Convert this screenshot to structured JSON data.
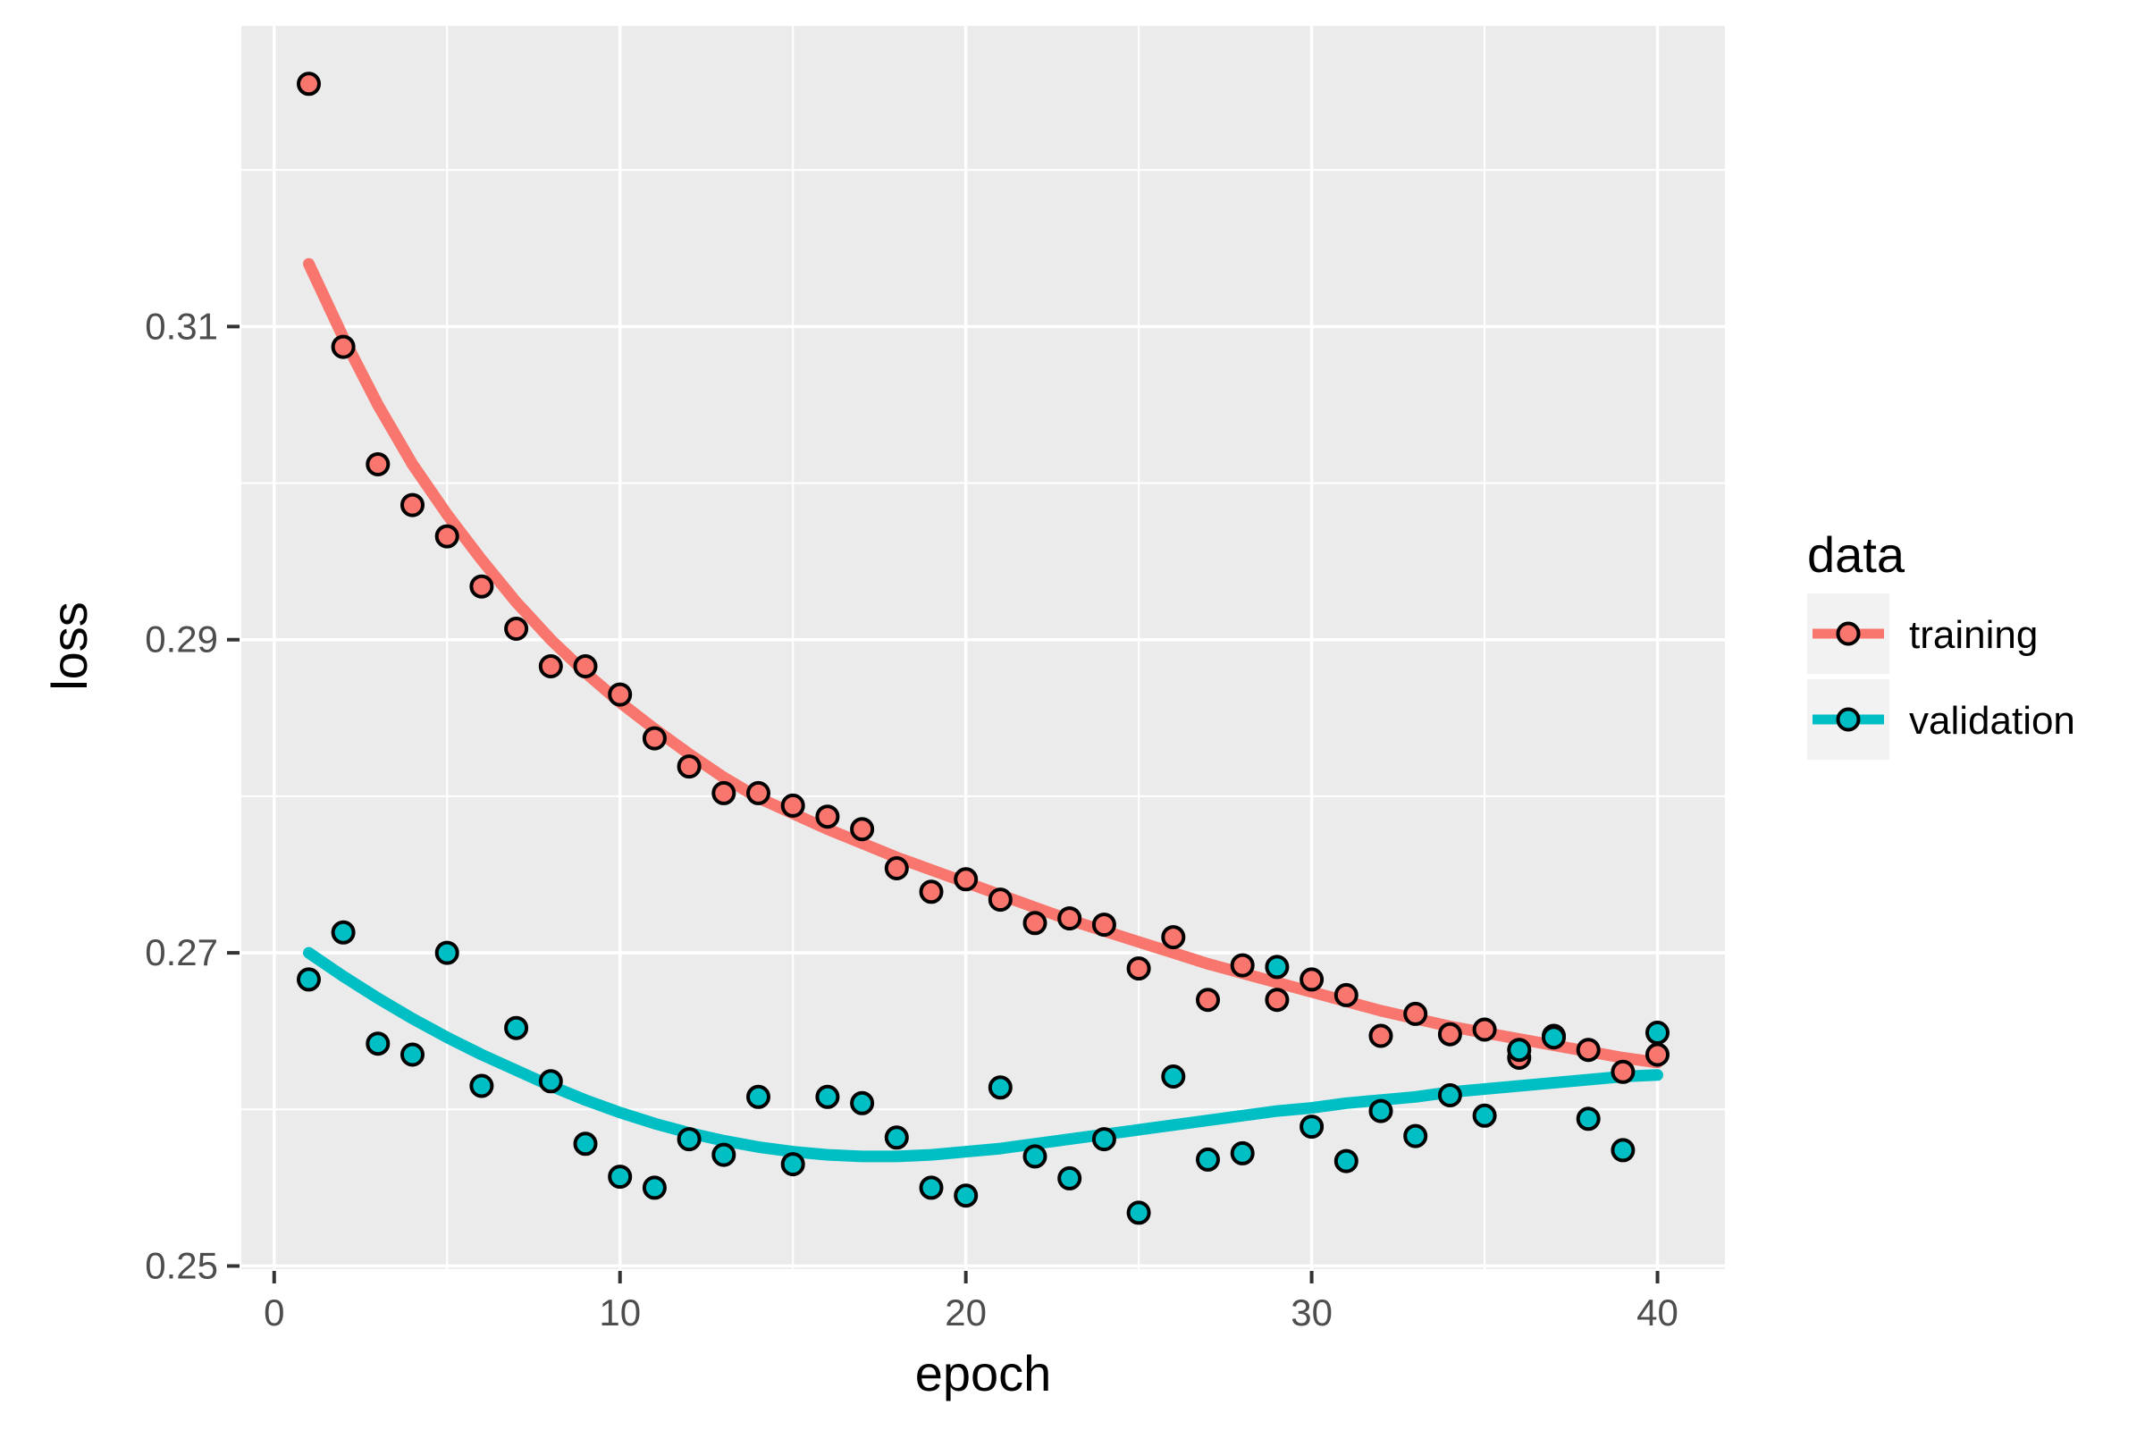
{
  "figure": {
    "background": "#FFFFFF"
  },
  "chart_data": {
    "type": "scatter",
    "title": "",
    "xlabel": "epoch",
    "ylabel": "loss",
    "x": [
      1,
      2,
      3,
      4,
      5,
      6,
      7,
      8,
      9,
      10,
      11,
      12,
      13,
      14,
      15,
      16,
      17,
      18,
      19,
      20,
      21,
      22,
      23,
      24,
      25,
      26,
      27,
      28,
      29,
      30,
      31,
      32,
      33,
      34,
      35,
      36,
      37,
      38,
      39,
      40
    ],
    "series": [
      {
        "name": "training",
        "color": "#F8766D",
        "values": [
          0.3255,
          0.3087,
          0.3012,
          0.2986,
          0.2966,
          0.2934,
          0.2907,
          0.2883,
          0.2883,
          0.2865,
          0.2837,
          0.2819,
          0.2802,
          0.2802,
          0.2794,
          0.2787,
          0.2779,
          0.2754,
          0.2739,
          0.2747,
          0.2734,
          0.2719,
          0.2722,
          0.2718,
          0.269,
          0.271,
          0.267,
          0.2692,
          0.267,
          0.2683,
          0.2673,
          0.2647,
          0.2661,
          0.2648,
          0.2651,
          0.2633,
          0.2647,
          0.2638,
          0.2624,
          0.2635
        ],
        "smooth": [
          0.314,
          0.3093,
          0.305,
          0.3012,
          0.298,
          0.2951,
          0.2924,
          0.29,
          0.2879,
          0.286,
          0.2843,
          0.2827,
          0.2812,
          0.2799,
          0.2789,
          0.2779,
          0.277,
          0.2761,
          0.2753,
          0.2745,
          0.2737,
          0.2729,
          0.2721,
          0.2714,
          0.2707,
          0.27,
          0.2693,
          0.2687,
          0.2681,
          0.2675,
          0.2669,
          0.2663,
          0.2658,
          0.2653,
          0.2649,
          0.2645,
          0.2641,
          0.2637,
          0.2633,
          0.263
        ]
      },
      {
        "name": "validation",
        "color": "#00BFC4",
        "values": [
          0.2683,
          0.2713,
          0.2642,
          0.2635,
          0.27,
          0.2615,
          0.2652,
          0.2618,
          0.2578,
          0.2557,
          0.255,
          0.2581,
          0.2571,
          0.2608,
          0.2565,
          0.2608,
          0.2604,
          0.2582,
          0.255,
          0.2545,
          0.2614,
          0.257,
          0.2556,
          0.2581,
          0.2534,
          0.2621,
          0.2568,
          0.2572,
          0.2691,
          0.2589,
          0.2567,
          0.2599,
          0.2583,
          0.2609,
          0.2596,
          0.2638,
          0.2646,
          0.2594,
          0.2574,
          0.2649
        ],
        "smooth": [
          0.27,
          0.2685,
          0.2671,
          0.2658,
          0.2646,
          0.2635,
          0.2625,
          0.2615,
          0.2606,
          0.2598,
          0.2591,
          0.2585,
          0.258,
          0.2576,
          0.2573,
          0.2571,
          0.257,
          0.257,
          0.2571,
          0.2573,
          0.2575,
          0.2578,
          0.2581,
          0.2584,
          0.2587,
          0.259,
          0.2593,
          0.2596,
          0.2599,
          0.2601,
          0.2604,
          0.2606,
          0.2608,
          0.2611,
          0.2613,
          0.2615,
          0.2617,
          0.2619,
          0.2621,
          0.2622
        ]
      }
    ],
    "axes": {
      "x_ticks": [
        0,
        10,
        20,
        30,
        40
      ],
      "x_tick_labels": [
        "0",
        "10",
        "20",
        "30",
        "40"
      ],
      "x_minor_ticks": [
        5,
        15,
        25,
        35
      ],
      "y_ticks": [
        0.25,
        0.27,
        0.29,
        0.31
      ],
      "y_tick_labels": [
        "0.25",
        "0.27",
        "0.29",
        "0.31"
      ],
      "y_minor_ticks": [
        0.26,
        0.28,
        0.3,
        0.32
      ],
      "xlim": [
        -0.95,
        41.95
      ],
      "ylim": [
        0.2498,
        0.3292
      ],
      "grid": true
    },
    "legend": {
      "title": "data",
      "position": "right",
      "entries": [
        {
          "label": "training",
          "color": "#F8766D"
        },
        {
          "label": "validation",
          "color": "#00BFC4"
        }
      ]
    },
    "style": {
      "panel_bg": "#EBEBEB",
      "grid_color": "#FFFFFF",
      "tick_color": "#333333",
      "tick_label_color": "#4D4D4D",
      "axis_title_color": "#000000",
      "legend_key_bg": "#F2F2F2",
      "point_stroke": "#000000"
    }
  }
}
